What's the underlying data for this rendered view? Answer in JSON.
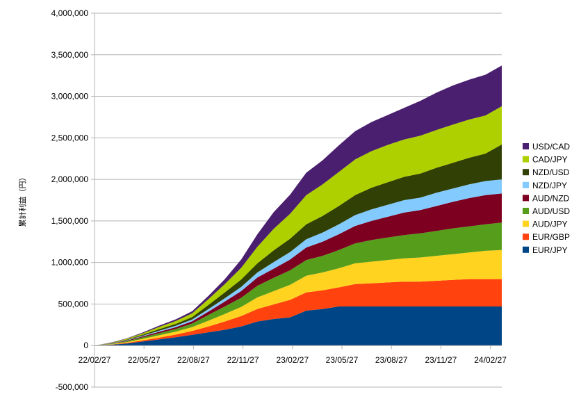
{
  "chart_data": {
    "type": "area",
    "stacked": true,
    "ylabel": "累計利益（円）",
    "ylim": [
      -500000,
      4000000
    ],
    "yticks": [
      -500000,
      0,
      500000,
      1000000,
      1500000,
      2000000,
      2500000,
      3000000,
      3500000,
      4000000
    ],
    "ytick_labels": [
      "-500,000",
      "0",
      "500,000",
      "1,000,000",
      "1,500,000",
      "2,000,000",
      "2,500,000",
      "3,000,000",
      "3,500,000",
      "4,000,000"
    ],
    "xticks": [
      "22/02/27",
      "22/05/27",
      "22/08/27",
      "22/11/27",
      "23/02/27",
      "23/05/27",
      "23/08/27",
      "23/11/27",
      "24/02/27"
    ],
    "grid": true,
    "legend_position": "right",
    "x": [
      "22/02/27",
      "22/03/27",
      "22/04/27",
      "22/05/27",
      "22/06/27",
      "22/07/27",
      "22/08/27",
      "22/09/27",
      "22/10/27",
      "22/11/27",
      "22/12/27",
      "23/01/27",
      "23/02/27",
      "23/03/27",
      "23/04/27",
      "23/05/27",
      "23/06/27",
      "23/07/27",
      "23/08/27",
      "23/09/27",
      "23/10/27",
      "23/11/27",
      "23/12/27",
      "24/01/27",
      "24/02/27",
      "24/03/10"
    ],
    "series": [
      {
        "name": "EUR/JPY",
        "color": "#004586",
        "values": [
          0,
          10000,
          25000,
          50000,
          75000,
          100000,
          130000,
          160000,
          190000,
          230000,
          290000,
          320000,
          340000,
          420000,
          440000,
          470000,
          470000,
          470000,
          470000,
          470000,
          470000,
          470000,
          470000,
          470000,
          470000,
          470000
        ]
      },
      {
        "name": "EUR/GBP",
        "color": "#ff420e",
        "values": [
          0,
          3000,
          8000,
          14000,
          22000,
          32000,
          45000,
          70000,
          100000,
          125000,
          150000,
          175000,
          210000,
          220000,
          225000,
          230000,
          270000,
          280000,
          290000,
          300000,
          300000,
          310000,
          320000,
          330000,
          330000,
          330000
        ]
      },
      {
        "name": "AUD/JPY",
        "color": "#ffd320",
        "values": [
          0,
          4000,
          10000,
          18000,
          28000,
          36000,
          48000,
          70000,
          90000,
          110000,
          140000,
          160000,
          180000,
          200000,
          215000,
          230000,
          250000,
          260000,
          270000,
          280000,
          290000,
          300000,
          310000,
          320000,
          340000,
          350000
        ]
      },
      {
        "name": "AUD/USD",
        "color": "#579d1c",
        "values": [
          0,
          5000,
          11000,
          18000,
          26000,
          32000,
          42000,
          70000,
          90000,
          110000,
          140000,
          160000,
          175000,
          190000,
          200000,
          220000,
          240000,
          260000,
          270000,
          280000,
          290000,
          300000,
          310000,
          315000,
          320000,
          330000
        ]
      },
      {
        "name": "AUD/NZD",
        "color": "#7e0021",
        "values": [
          0,
          3000,
          7000,
          12000,
          17000,
          22000,
          28000,
          40000,
          60000,
          80000,
          100000,
          110000,
          130000,
          150000,
          170000,
          190000,
          210000,
          230000,
          250000,
          270000,
          280000,
          300000,
          320000,
          340000,
          350000,
          350000
        ]
      },
      {
        "name": "NZD/JPY",
        "color": "#83caff",
        "values": [
          0,
          2000,
          5000,
          9000,
          13000,
          17000,
          22000,
          30000,
          40000,
          50000,
          60000,
          80000,
          90000,
          100000,
          110000,
          120000,
          130000,
          140000,
          145000,
          150000,
          150000,
          160000,
          160000,
          165000,
          170000,
          170000
        ]
      },
      {
        "name": "NZD/USD",
        "color": "#314004",
        "values": [
          0,
          3000,
          7000,
          12000,
          18000,
          22000,
          28000,
          50000,
          70000,
          90000,
          110000,
          140000,
          160000,
          180000,
          200000,
          220000,
          240000,
          260000,
          270000,
          280000,
          290000,
          300000,
          310000,
          320000,
          330000,
          420000
        ]
      },
      {
        "name": "CAD/JPY",
        "color": "#aecf00",
        "values": [
          0,
          4000,
          10000,
          18000,
          28000,
          35000,
          45000,
          70000,
          100000,
          140000,
          200000,
          260000,
          300000,
          350000,
          380000,
          410000,
          430000,
          440000,
          450000,
          450000,
          455000,
          455000,
          460000,
          460000,
          460000,
          460000
        ]
      },
      {
        "name": "USD/CAD",
        "color": "#4b1f6f",
        "values": [
          0,
          2000,
          5000,
          10000,
          15000,
          20000,
          25000,
          40000,
          60000,
          100000,
          150000,
          200000,
          230000,
          270000,
          290000,
          320000,
          340000,
          350000,
          360000,
          380000,
          420000,
          450000,
          470000,
          480000,
          490000,
          490000
        ]
      }
    ]
  }
}
